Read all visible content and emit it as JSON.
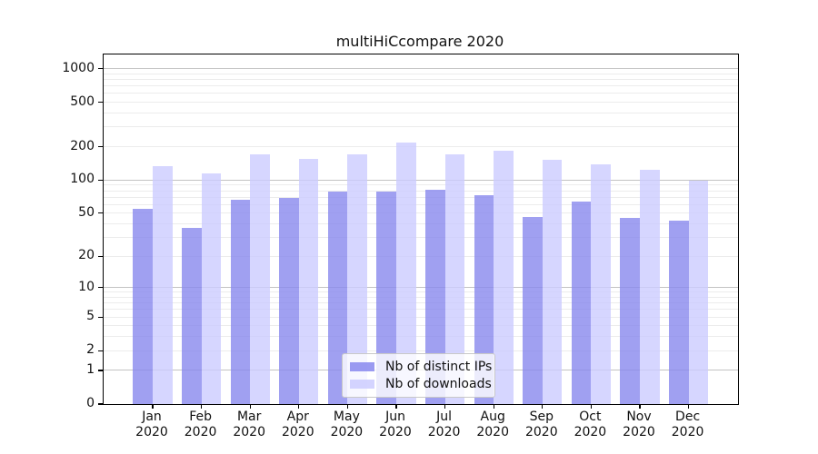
{
  "title": "multiHiCcompare 2020",
  "chart_data": {
    "type": "bar",
    "title": "multiHiCcompare 2020",
    "categories": [
      "Jan 2020",
      "Feb 2020",
      "Mar 2020",
      "Apr 2020",
      "May 2020",
      "Jun 2020",
      "Jul 2020",
      "Aug 2020",
      "Sep 2020",
      "Oct 2020",
      "Nov 2020",
      "Dec 2020"
    ],
    "series": [
      {
        "name": "Nb of distinct IPs",
        "color": "#8888ee",
        "values": [
          55,
          37,
          66,
          69,
          78,
          79,
          81,
          73,
          46,
          64,
          45,
          43
        ]
      },
      {
        "name": "Nb of downloads",
        "color": "#ccccff",
        "values": [
          134,
          115,
          169,
          154,
          172,
          216,
          172,
          183,
          152,
          139,
          123,
          99
        ]
      }
    ],
    "yscale": "log1p",
    "yticks": [
      0,
      1,
      2,
      5,
      10,
      20,
      50,
      100,
      200,
      500,
      1000
    ],
    "ylim": [
      0,
      1000
    ],
    "grid": "horizontal",
    "legend_position": "inside-bottom-center"
  },
  "colors": {
    "bar_ips": "#8888ee",
    "bar_downloads": "#ccccff",
    "grid_major": "#c3c3c3",
    "grid_minor": "#ececec",
    "axis": "#000000",
    "legend_border": "#c8c8c8",
    "legend_bg": "rgba(255,255,255,0.8)"
  }
}
